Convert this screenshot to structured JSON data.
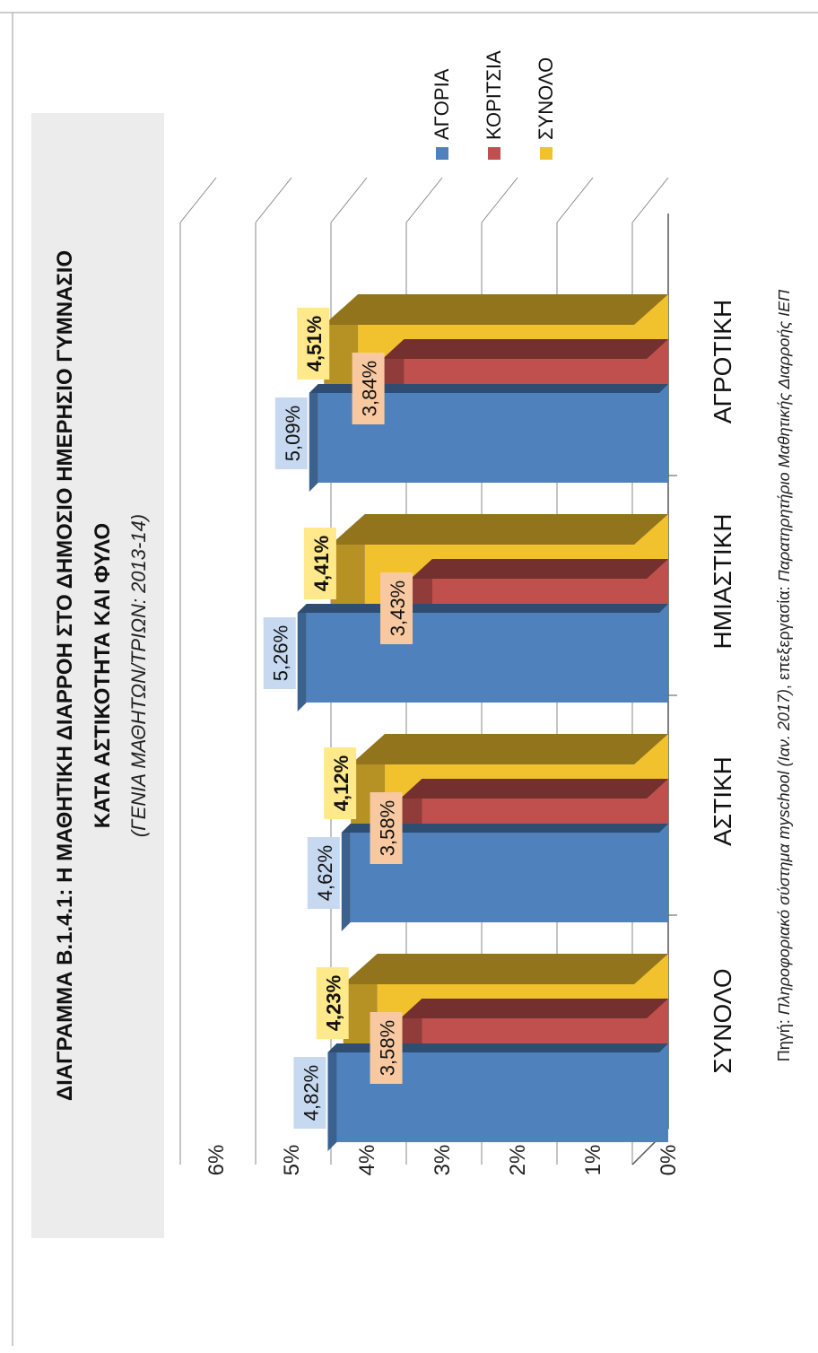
{
  "chart_data": {
    "type": "bar",
    "title_lines": [
      "ΔΙΑΓΡΑΜΜΑ Β.1.4.1: Η ΜΑΘΗΤΙΚΗ ΔΙΑΡΡΟΗ ΣΤΟ ΔΗΜΟΣΙΟ ΗΜΕΡΗΣΙΟ ΓΥΜΝΑΣΙΟ",
      "ΚΑΤΑ ΑΣΤΙΚΟΤΗΤΑ ΚΑΙ ΦΥΛΟ"
    ],
    "subtitle": "(ΓΕΝΙΑ ΜΑΘΗΤΩΝ/ΤΡΙΩΝ: 2013-14)",
    "categories": [
      "ΣΥΝΟΛΟ",
      "ΑΣΤΙΚΗ",
      "ΗΜΙΑΣΤΙΚΗ",
      "ΑΓΡΟΤΙΚΗ"
    ],
    "series": [
      {
        "name": "ΑΓΟΡΙΑ",
        "color": "#4f81bd",
        "values": [
          4.82,
          4.62,
          5.26,
          5.09
        ],
        "labels": [
          "4,82%",
          "4,62%",
          "5,26%",
          "5,09%"
        ]
      },
      {
        "name": "ΚΟΡΙΤΣΙΑ",
        "color": "#c0504d",
        "values": [
          3.58,
          3.58,
          3.43,
          3.84
        ],
        "labels": [
          "3,58%",
          "3,58%",
          "3,43%",
          "3,84%"
        ]
      },
      {
        "name": "ΣΥΝΟΛΟ",
        "color": "#f2c12e",
        "values": [
          4.23,
          4.12,
          4.41,
          4.51
        ],
        "labels": [
          "4,23%",
          "4,12%",
          "4,41%",
          "4,51%"
        ]
      }
    ],
    "label_colors": [
      "#c6d9f0",
      "#f8c9a0",
      "#ffe98a"
    ],
    "ylim": [
      0,
      6
    ],
    "yticks": [
      "0%",
      "1%",
      "2%",
      "3%",
      "4%",
      "5%",
      "6%"
    ],
    "grid": true,
    "three_d": true,
    "legend_position": "top-right",
    "source_prefix": "Πηγή: ",
    "source_italic": "Πληροφοριακό σύστημα myschool (Ιαν. 2017)",
    "source_middle": ", επεξεργασία: ",
    "source_italic2": "Παρατηρητήριο Μαθητικής Διαρροής ΙΕΠ"
  }
}
